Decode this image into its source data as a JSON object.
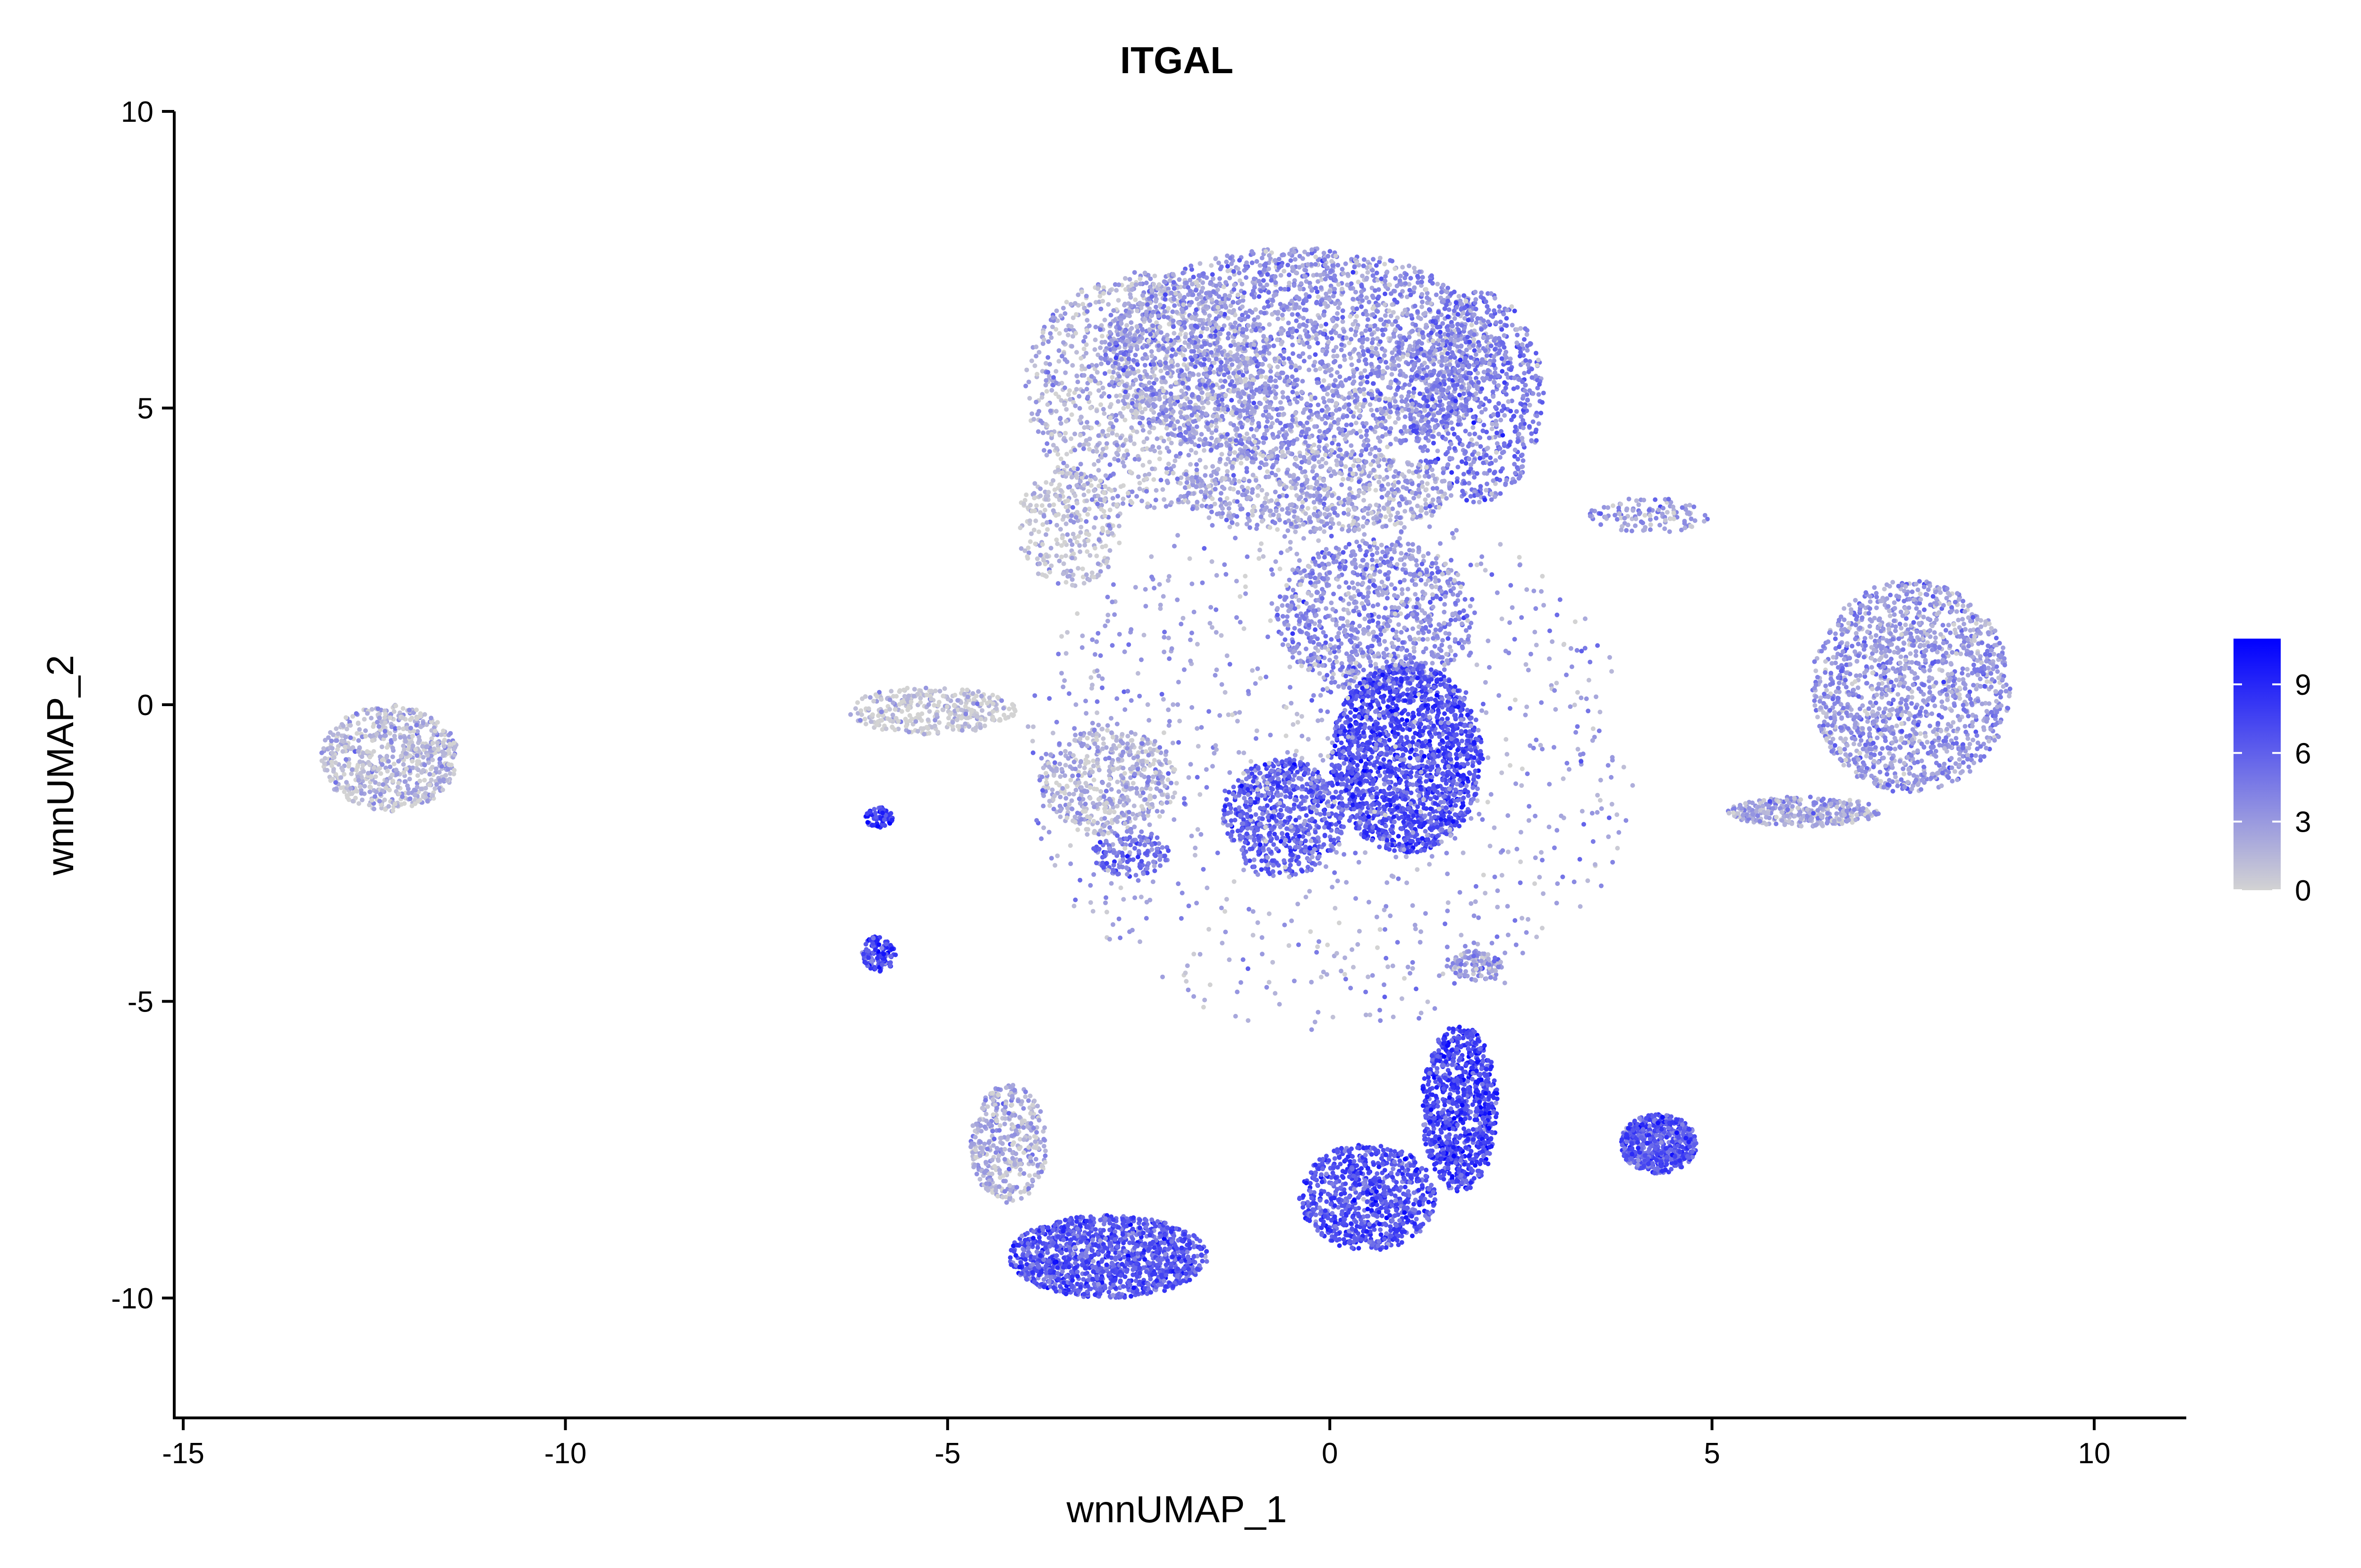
{
  "chart_data": {
    "type": "scatter",
    "title": "ITGAL",
    "xlabel": "wnnUMAP_1",
    "ylabel": "wnnUMAP_2",
    "xlim": [
      -15.2,
      11.2
    ],
    "ylim": [
      -11.9,
      10.0
    ],
    "x_ticks": [
      -15,
      -10,
      -5,
      0,
      5,
      10
    ],
    "x_tick_labels": [
      "-15",
      "-10",
      "-5",
      "0",
      "5",
      "10"
    ],
    "y_ticks": [
      10,
      5,
      0,
      -5,
      -10
    ],
    "y_tick_labels": [
      "10",
      "5",
      "0",
      "-5",
      "-10"
    ],
    "grid": false,
    "colorbar": {
      "ticks": [
        0,
        3,
        6,
        9
      ],
      "tick_labels": [
        "0",
        "3",
        "6",
        "9"
      ],
      "range": [
        0,
        11
      ],
      "low_color": "#d3d3d3",
      "high_color": "#0000ff",
      "placement": "right"
    },
    "clusters": [
      {
        "name": "top-dome-left",
        "cx": -2.4,
        "cy": 5.3,
        "rx": 1.6,
        "ry": 2.0,
        "value": 1.8,
        "n": 1200
      },
      {
        "name": "top-dome-center",
        "cx": -0.4,
        "cy": 5.9,
        "rx": 2.6,
        "ry": 1.8,
        "value": 3.2,
        "n": 2600
      },
      {
        "name": "top-dome-right",
        "cx": 1.9,
        "cy": 5.2,
        "rx": 0.9,
        "ry": 1.8,
        "value": 4.5,
        "n": 800
      },
      {
        "name": "dome-lower-left",
        "cx": -3.4,
        "cy": 3.0,
        "rx": 0.7,
        "ry": 1.0,
        "value": 1.0,
        "n": 300
      },
      {
        "name": "center-band",
        "cx": -0.2,
        "cy": 3.6,
        "rx": 1.8,
        "ry": 0.7,
        "value": 2.4,
        "n": 700
      },
      {
        "name": "center-stem",
        "cx": 0.6,
        "cy": 1.5,
        "rx": 1.3,
        "ry": 1.3,
        "value": 3.6,
        "n": 900
      },
      {
        "name": "center-core",
        "cx": 1.0,
        "cy": -0.9,
        "rx": 1.0,
        "ry": 1.6,
        "value": 7.0,
        "n": 1800
      },
      {
        "name": "center-core-left",
        "cx": -0.6,
        "cy": -1.9,
        "rx": 0.8,
        "ry": 1.0,
        "value": 6.0,
        "n": 700
      },
      {
        "name": "center-left-gray",
        "cx": -2.9,
        "cy": -1.3,
        "rx": 0.9,
        "ry": 0.9,
        "value": 1.6,
        "n": 500
      },
      {
        "name": "left-tail-gray",
        "cx": -5.2,
        "cy": -0.1,
        "rx": 1.1,
        "ry": 0.4,
        "value": 0.4,
        "n": 350
      },
      {
        "name": "mid-left-patch",
        "cx": -2.6,
        "cy": -2.5,
        "rx": 0.5,
        "ry": 0.4,
        "value": 5.0,
        "n": 150
      },
      {
        "name": "far-left-island",
        "cx": -12.3,
        "cy": -0.9,
        "rx": 0.9,
        "ry": 0.9,
        "value": 1.2,
        "n": 700
      },
      {
        "name": "small-upper-purple",
        "cx": -5.9,
        "cy": -1.9,
        "rx": 0.18,
        "ry": 0.18,
        "value": 8.0,
        "n": 70
      },
      {
        "name": "small-lower-purple",
        "cx": -5.9,
        "cy": -4.2,
        "rx": 0.22,
        "ry": 0.3,
        "value": 7.5,
        "n": 110
      },
      {
        "name": "right-crescent",
        "cx": 7.6,
        "cy": 0.3,
        "rx": 1.3,
        "ry": 1.8,
        "value": 3.0,
        "n": 1500
      },
      {
        "name": "right-crescent-tail",
        "cx": 6.2,
        "cy": -1.8,
        "rx": 1.0,
        "ry": 0.25,
        "value": 2.2,
        "n": 350
      },
      {
        "name": "bridge-streak",
        "cx": 4.2,
        "cy": 3.2,
        "rx": 0.8,
        "ry": 0.3,
        "value": 2.6,
        "n": 120
      },
      {
        "name": "lower-right-blob",
        "cx": 4.3,
        "cy": -7.4,
        "rx": 0.5,
        "ry": 0.5,
        "value": 6.5,
        "n": 600
      },
      {
        "name": "lower-center-vertical",
        "cx": 1.7,
        "cy": -6.8,
        "rx": 0.5,
        "ry": 1.4,
        "value": 7.5,
        "n": 900
      },
      {
        "name": "lower-center-left",
        "cx": 0.5,
        "cy": -8.3,
        "rx": 0.9,
        "ry": 0.9,
        "value": 6.8,
        "n": 800
      },
      {
        "name": "lower-mid-strip",
        "cx": 1.9,
        "cy": -4.4,
        "rx": 0.35,
        "ry": 0.25,
        "value": 3.0,
        "n": 120
      },
      {
        "name": "bottom-left-arc",
        "cx": -2.9,
        "cy": -9.3,
        "rx": 1.3,
        "ry": 0.7,
        "value": 6.5,
        "n": 1300
      },
      {
        "name": "bottom-left-upper-arc",
        "cx": -4.2,
        "cy": -7.4,
        "rx": 0.5,
        "ry": 1.0,
        "value": 2.0,
        "n": 400
      },
      {
        "name": "scattered-cloud",
        "cx": 0.0,
        "cy": -1.0,
        "rx": 4.0,
        "ry": 4.5,
        "value": 2.5,
        "n": 900
      }
    ]
  }
}
